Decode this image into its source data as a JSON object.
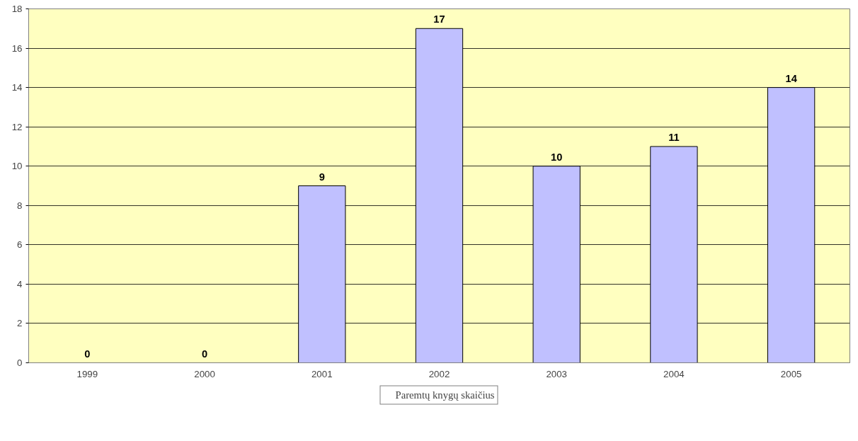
{
  "chart_data": {
    "type": "bar",
    "categories": [
      "1999",
      "2000",
      "2001",
      "2002",
      "2003",
      "2004",
      "2005"
    ],
    "series": [
      {
        "name": "Paremtų knygų skaičius",
        "color": "#c0c0ff",
        "values": [
          0,
          0,
          9,
          17,
          10,
          11,
          14
        ]
      }
    ],
    "ylim": [
      0,
      18
    ],
    "yticks": [
      0,
      2,
      4,
      6,
      8,
      10,
      12,
      14,
      16,
      18
    ],
    "grid": "y",
    "legend": "bottom",
    "data_labels": true
  }
}
